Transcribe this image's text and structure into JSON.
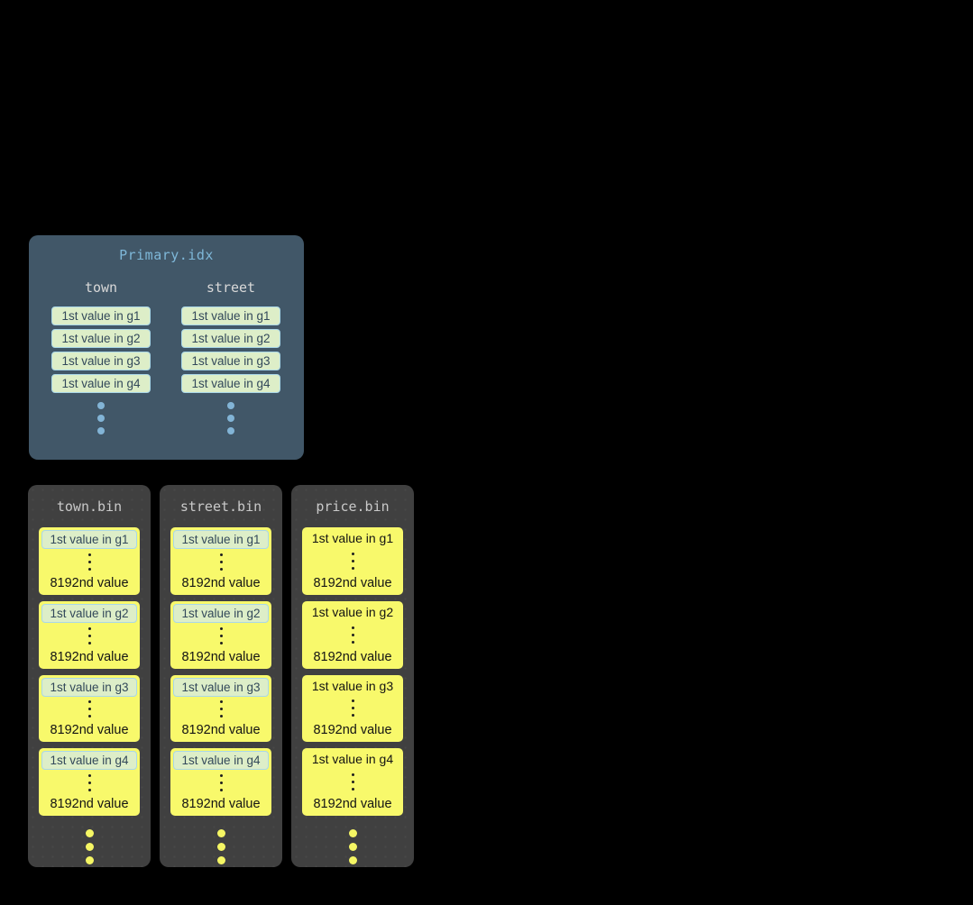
{
  "primary_index": {
    "title": "Primary.idx",
    "columns": [
      {
        "name": "town",
        "entries": [
          "1st value in g1",
          "1st value in g2",
          "1st value in g3",
          "1st value in g4"
        ]
      },
      {
        "name": "street",
        "entries": [
          "1st value in g1",
          "1st value in g2",
          "1st value in g3",
          "1st value in g4"
        ]
      }
    ]
  },
  "bin_files": [
    {
      "title": "town.bin",
      "indexed_in_primary": true,
      "granules": [
        {
          "first_value": "1st value in g1",
          "last_value": "8192nd value"
        },
        {
          "first_value": "1st value in g2",
          "last_value": "8192nd value"
        },
        {
          "first_value": "1st value in g3",
          "last_value": "8192nd value"
        },
        {
          "first_value": "1st value in g4",
          "last_value": "8192nd value"
        }
      ]
    },
    {
      "title": "street.bin",
      "indexed_in_primary": true,
      "granules": [
        {
          "first_value": "1st value in g1",
          "last_value": "8192nd value"
        },
        {
          "first_value": "1st value in g2",
          "last_value": "8192nd value"
        },
        {
          "first_value": "1st value in g3",
          "last_value": "8192nd value"
        },
        {
          "first_value": "1st value in g4",
          "last_value": "8192nd value"
        }
      ]
    },
    {
      "title": "price.bin",
      "indexed_in_primary": false,
      "granules": [
        {
          "first_value": "1st value in g1",
          "last_value": "8192nd value"
        },
        {
          "first_value": "1st value in g2",
          "last_value": "8192nd value"
        },
        {
          "first_value": "1st value in g3",
          "last_value": "8192nd value"
        },
        {
          "first_value": "1st value in g4",
          "last_value": "8192nd value"
        }
      ]
    }
  ],
  "colors": {
    "background": "#000000",
    "primary_box": "#415768",
    "primary_title": "#7eb7d8",
    "column_header": "#d8d8d8",
    "chip_background": "#ddeec8",
    "chip_border": "#a9d7e8",
    "chip_text": "#32485a",
    "bin_box": "#404040",
    "bin_title": "#c9c9c9",
    "granule_block": "#f8f96b",
    "granule_text": "#131313",
    "blue_dot": "#82b4d6",
    "yellow_dot": "#f5f664"
  }
}
